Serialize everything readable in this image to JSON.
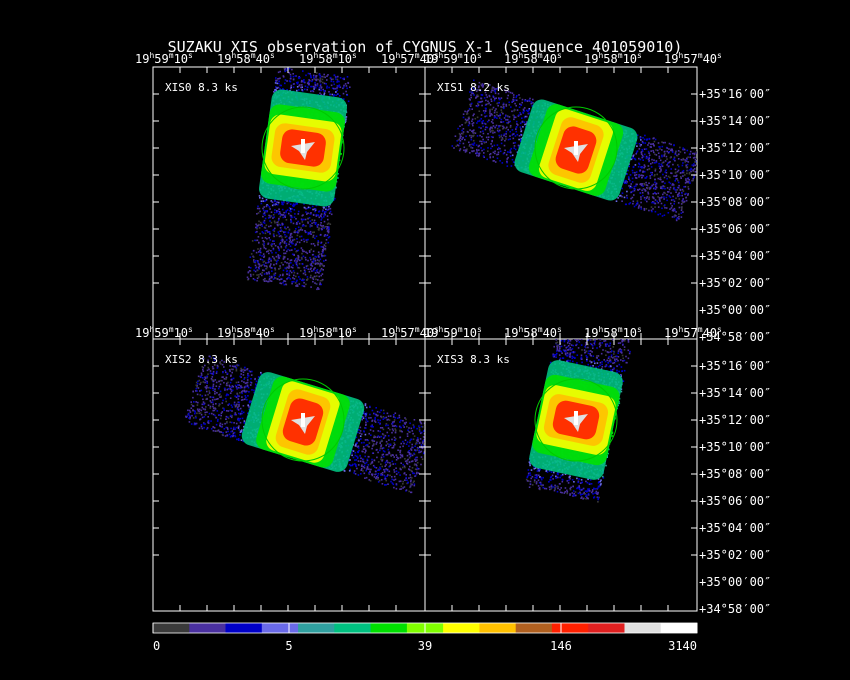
{
  "title": "SUZAKU XIS observation of CYGNUS X-1  (Sequence 401059010)",
  "top_ra_labels": [
    {
      "h": "19",
      "m": "59",
      "s": "10"
    },
    {
      "h": "19",
      "m": "58",
      "s": "40"
    },
    {
      "h": "19",
      "m": "58",
      "s": "10"
    },
    {
      "h": "19",
      "m": "57",
      "s": "40"
    }
  ],
  "dec_labels": [
    "+35°16′00″",
    "+35°14′00″",
    "+35°12′00″",
    "+35°10′00″",
    "+35°08′00″",
    "+35°06′00″",
    "+35°04′00″",
    "+35°02′00″",
    "+35°00′00″",
    "+34°58′00″"
  ],
  "chart_data": [
    {
      "type": "heatmap",
      "panel": "XIS0",
      "label": "XIS0 8.3 ks",
      "exposure_ks": 8.3,
      "orientation": "near-vertical strip",
      "source_circle": true
    },
    {
      "type": "heatmap",
      "panel": "XIS1",
      "label": "XIS1 8.2 ks",
      "exposure_ks": 8.2,
      "orientation": "tilted strip (down-right)",
      "source_circle": true
    },
    {
      "type": "heatmap",
      "panel": "XIS2",
      "label": "XIS2 8.3 ks",
      "exposure_ks": 8.3,
      "orientation": "tilted strip (down-right)",
      "source_circle": true
    },
    {
      "type": "heatmap",
      "panel": "XIS3",
      "label": "XIS3 8.3 ks",
      "exposure_ks": 8.3,
      "orientation": "near-vertical strip",
      "source_circle": true
    }
  ],
  "colorbar": {
    "tick_labels": [
      "0",
      "5",
      "39",
      "146",
      "3140"
    ],
    "colors": [
      "#3a3a3a",
      "#4a30a0",
      "#0000c8",
      "#6a6ae8",
      "#30a0a0",
      "#00c080",
      "#00e000",
      "#80ff00",
      "#ffff00",
      "#ffc000",
      "#b06020",
      "#ff2000",
      "#e02020",
      "#e0e0e0",
      "#ffffff"
    ]
  }
}
